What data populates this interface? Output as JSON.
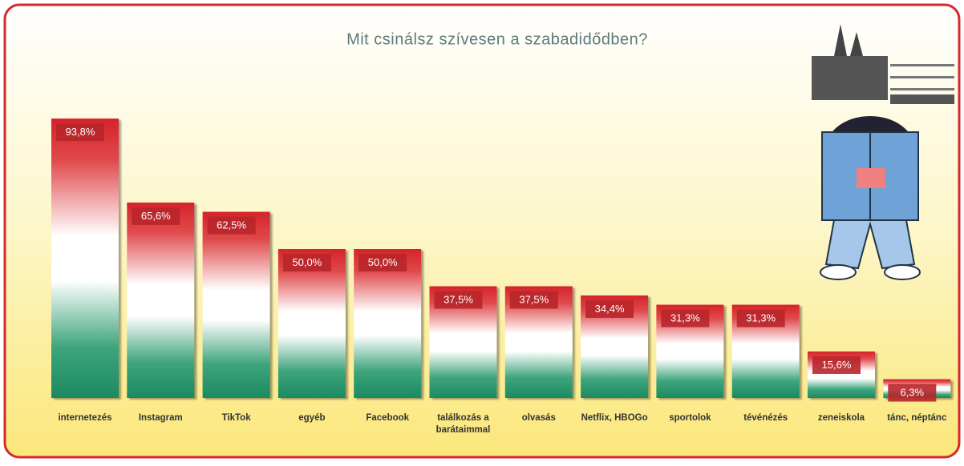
{
  "chart_data": {
    "type": "bar",
    "title": "Mit csinálsz szívesen a szabadidődben?",
    "categories": [
      "internetezés",
      "Instagram",
      "TikTok",
      "egyéb",
      "Facebook",
      "találkozás a barátaimmal",
      "olvasás",
      "Netflix, HBOGo",
      "sportolok",
      "tévénézés",
      "zeneiskola",
      "tánc, néptánc"
    ],
    "values": [
      93.8,
      65.6,
      62.5,
      50.0,
      50.0,
      37.5,
      37.5,
      34.4,
      31.3,
      31.3,
      15.6,
      6.3
    ],
    "value_labels": [
      "93,8%",
      "65,6%",
      "62,5%",
      "50,0%",
      "50,0%",
      "37,5%",
      "37,5%",
      "34,4%",
      "31,3%",
      "31,3%",
      "15,6%",
      "6,3%"
    ],
    "ylim": [
      0,
      100
    ]
  }
}
